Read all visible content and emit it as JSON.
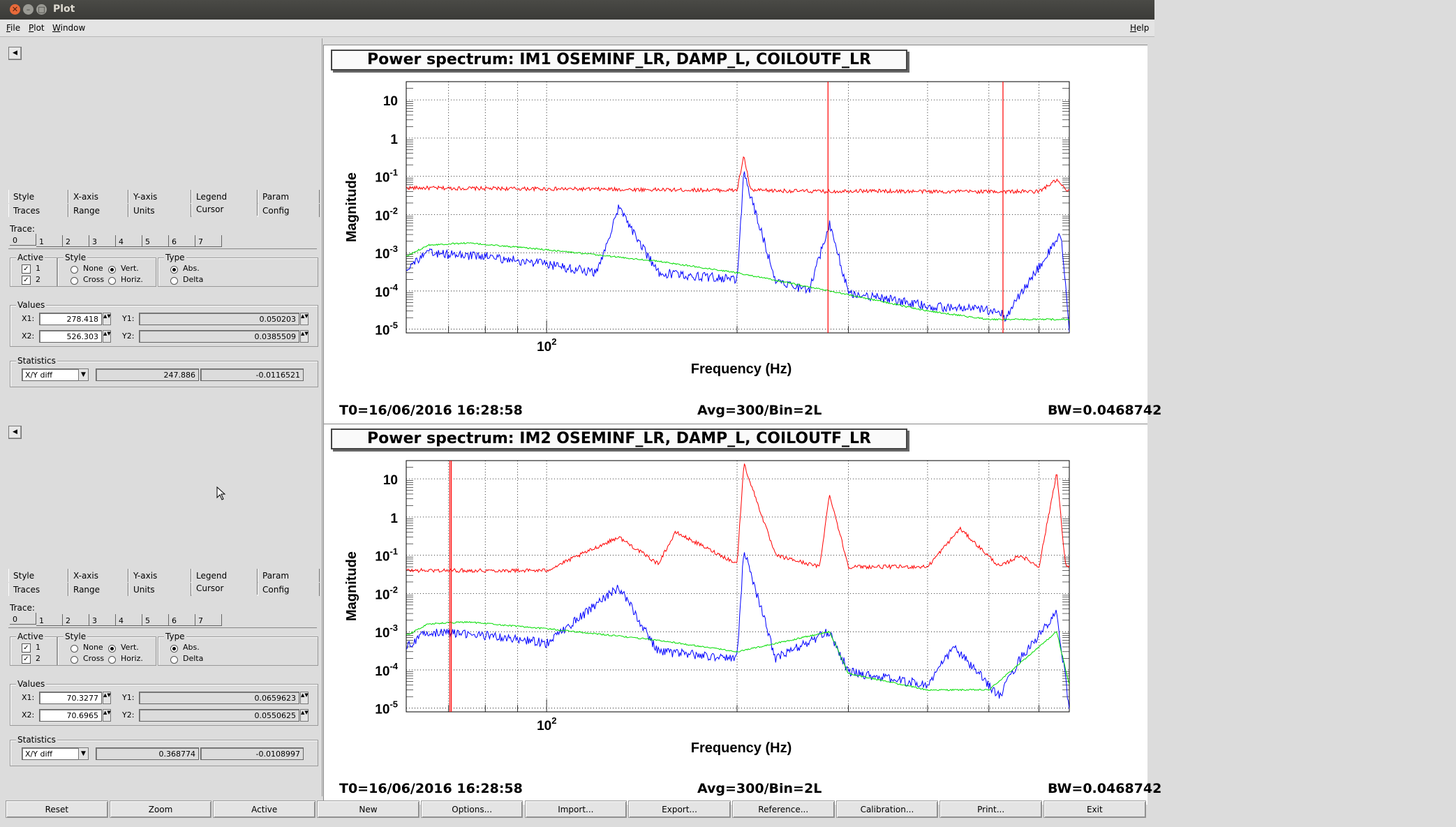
{
  "window": {
    "title": "Plot"
  },
  "menu": {
    "file": "File",
    "plot": "Plot",
    "window": "Window",
    "help": "Help"
  },
  "panels": [
    {
      "tabs_row1": [
        "Style",
        "X-axis",
        "Y-axis",
        "Legend",
        "Param"
      ],
      "tabs_row2": [
        "Traces",
        "Range",
        "Units",
        "Cursor",
        "Config"
      ],
      "trace_label": "Trace:",
      "trace_tabs": [
        "0",
        "1",
        "2",
        "3",
        "4",
        "5",
        "6",
        "7"
      ],
      "active_label": "Active",
      "active_items": [
        "1",
        "2"
      ],
      "style_label": "Style",
      "style_none": "None",
      "style_vert": "Vert.",
      "style_cross": "Cross",
      "style_horiz": "Horiz.",
      "type_label": "Type",
      "type_abs": "Abs.",
      "type_delta": "Delta",
      "values_label": "Values",
      "x1_label": "X1:",
      "x1": "278.418",
      "y1_label": "Y1:",
      "y1": "0.050203",
      "x2_label": "X2:",
      "x2": "526.303",
      "y2_label": "Y2:",
      "y2": "0.0385509",
      "stats_label": "Statistics",
      "stats_mode": "X/Y diff",
      "stats_x": "247.886",
      "stats_y": "-0.0116521"
    },
    {
      "tabs_row1": [
        "Style",
        "X-axis",
        "Y-axis",
        "Legend",
        "Param"
      ],
      "tabs_row2": [
        "Traces",
        "Range",
        "Units",
        "Cursor",
        "Config"
      ],
      "trace_label": "Trace:",
      "trace_tabs": [
        "0",
        "1",
        "2",
        "3",
        "4",
        "5",
        "6",
        "7"
      ],
      "active_label": "Active",
      "active_items": [
        "1",
        "2"
      ],
      "style_label": "Style",
      "style_none": "None",
      "style_vert": "Vert.",
      "style_cross": "Cross",
      "style_horiz": "Horiz.",
      "type_label": "Type",
      "type_abs": "Abs.",
      "type_delta": "Delta",
      "values_label": "Values",
      "x1_label": "X1:",
      "x1": "70.3277",
      "y1_label": "Y1:",
      "y1": "0.0659623",
      "x2_label": "X2:",
      "x2": "70.6965",
      "y2_label": "Y2:",
      "y2": "0.0550625",
      "stats_label": "Statistics",
      "stats_mode": "X/Y diff",
      "stats_x": "0.368774",
      "stats_y": "-0.0108997"
    }
  ],
  "plots": [
    {
      "title": "Power spectrum: IM1 OSEMINF_LR, DAMP_L, COILOUTF_LR",
      "t0": "T0=16/06/2016 16:28:58",
      "avg": "Avg=300/Bin=2L",
      "bw": "BW=0.0468742"
    },
    {
      "title": "Power spectrum: IM2 OSEMINF_LR, DAMP_L, COILOUTF_LR",
      "t0": "T0=16/06/2016 16:28:58",
      "avg": "Avg=300/Bin=2L",
      "bw": "BW=0.0468742"
    }
  ],
  "chart_data": [
    {
      "type": "line",
      "title": "Power spectrum: IM1 OSEMINF_LR, DAMP_L, COILOUTF_LR",
      "xlabel": "Frequency (Hz)",
      "ylabel": "Magnitude",
      "xscale": "log",
      "yscale": "log",
      "grid": true,
      "xlim": [
        60,
        670
      ],
      "ylim": [
        8e-06,
        30
      ],
      "x_tick_labels": [
        "10^2"
      ],
      "y_tick_labels": [
        "10^-5",
        "10^-4",
        "10^-3",
        "10^-2",
        "10^-1",
        "1",
        "10"
      ],
      "cursors_x": [
        278.418,
        526.303
      ],
      "series": [
        {
          "color": "#ff0000",
          "x": [
            60,
            80,
            100,
            140,
            200,
            205,
            210,
            280,
            300,
            400,
            600,
            640,
            660,
            670
          ],
          "y": [
            0.05,
            0.048,
            0.047,
            0.045,
            0.043,
            0.35,
            0.043,
            0.04,
            0.042,
            0.04,
            0.04,
            0.08,
            0.045,
            0.04
          ]
        },
        {
          "color": "#0000ff",
          "x": [
            60,
            65,
            70,
            80,
            100,
            120,
            130,
            150,
            200,
            205,
            230,
            260,
            280,
            300,
            400,
            520,
            530,
            650,
            670
          ],
          "y": [
            0.0004,
            0.001,
            0.0009,
            0.0008,
            0.0005,
            0.0003,
            0.015,
            0.0003,
            0.0002,
            0.12,
            0.0002,
            0.0001,
            0.006,
            9e-05,
            4e-05,
            3e-05,
            2e-05,
            0.003,
            1e-05
          ]
        },
        {
          "color": "#00dd00",
          "x": [
            60,
            65,
            75,
            100,
            150,
            200,
            300,
            400,
            500,
            670
          ],
          "y": [
            0.0008,
            0.0016,
            0.0018,
            0.0012,
            0.0006,
            0.0003,
            8e-05,
            3e-05,
            1.8e-05,
            1.8e-05
          ]
        }
      ]
    },
    {
      "type": "line",
      "title": "Power spectrum: IM2 OSEMINF_LR, DAMP_L, COILOUTF_LR",
      "xlabel": "Frequency (Hz)",
      "ylabel": "Magnitude",
      "xscale": "log",
      "yscale": "log",
      "grid": true,
      "xlim": [
        60,
        670
      ],
      "ylim": [
        8e-06,
        30
      ],
      "x_tick_labels": [
        "10^2"
      ],
      "y_tick_labels": [
        "10^-5",
        "10^-4",
        "10^-3",
        "10^-2",
        "10^-1",
        "1",
        "10"
      ],
      "cursors_x": [
        70.3277,
        70.6965
      ],
      "series": [
        {
          "color": "#ff0000",
          "x": [
            60,
            80,
            100,
            130,
            150,
            160,
            200,
            205,
            230,
            270,
            280,
            300,
            400,
            450,
            520,
            560,
            600,
            640,
            660,
            670
          ],
          "y": [
            0.04,
            0.04,
            0.04,
            0.3,
            0.06,
            0.4,
            0.06,
            25,
            0.1,
            0.05,
            4,
            0.05,
            0.05,
            0.5,
            0.05,
            0.1,
            0.05,
            15,
            0.06,
            0.05
          ]
        },
        {
          "color": "#0000ff",
          "x": [
            60,
            65,
            70,
            80,
            100,
            130,
            150,
            200,
            205,
            230,
            280,
            300,
            400,
            440,
            520,
            560,
            640,
            670
          ],
          "y": [
            0.0004,
            0.001,
            0.0009,
            0.0008,
            0.0005,
            0.015,
            0.0003,
            0.0002,
            0.15,
            0.0002,
            0.001,
            9e-05,
            4e-05,
            0.0004,
            2e-05,
            0.0002,
            0.003,
            1e-05
          ]
        },
        {
          "color": "#00dd00",
          "x": [
            60,
            65,
            75,
            100,
            150,
            200,
            280,
            300,
            400,
            500,
            640,
            670
          ],
          "y": [
            0.0008,
            0.0016,
            0.0018,
            0.0012,
            0.0006,
            0.0003,
            0.001,
            8e-05,
            3e-05,
            3e-05,
            0.001,
            4e-05
          ]
        }
      ]
    }
  ],
  "buttons": [
    "Reset",
    "Zoom",
    "Active",
    "New",
    "Options...",
    "Import...",
    "Export...",
    "Reference...",
    "Calibration...",
    "Print...",
    "Exit"
  ]
}
